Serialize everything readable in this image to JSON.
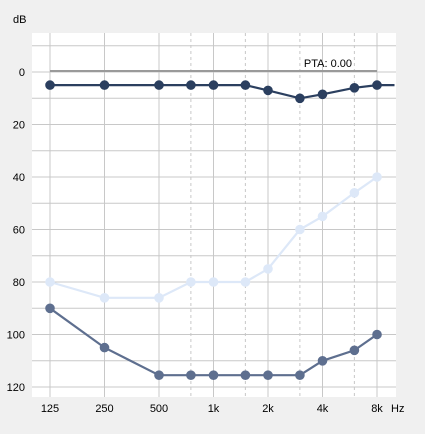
{
  "chart_data": {
    "type": "line",
    "y_unit_label": "dB",
    "x_unit_label": "Hz",
    "pta_label": "PTA: 0.00",
    "x_tick_labels": [
      "125",
      "250",
      "500",
      "1k",
      "2k",
      "4k",
      "8k"
    ],
    "y_tick_labels": [
      "0",
      "20",
      "40",
      "60",
      "80",
      "100",
      "120"
    ],
    "ylim": [
      -15,
      125
    ],
    "y_ticks": [
      0,
      20,
      40,
      60,
      80,
      100,
      120
    ],
    "y_minor_step": 10,
    "x_major_freqs": [
      125,
      250,
      500,
      1000,
      2000,
      4000,
      8000
    ],
    "x_dashed_freqs": [
      750,
      1500,
      3000,
      6000
    ],
    "xlim": [
      100,
      10000
    ],
    "x_scale": "log",
    "grid": true,
    "pta_line_value": 0,
    "colors": {
      "background": "#f0f0f0",
      "plot_background": "#ffffff",
      "grid": "#c8c8c8",
      "pta_line": "#9a9a9a"
    },
    "series": [
      {
        "color": "#2b3f5f",
        "points": [
          [
            125,
            5
          ],
          [
            250,
            5
          ],
          [
            500,
            5
          ],
          [
            750,
            5
          ],
          [
            1000,
            5
          ],
          [
            1500,
            5
          ],
          [
            2000,
            7
          ],
          [
            3000,
            10
          ],
          [
            4000,
            8.5
          ],
          [
            6000,
            6
          ],
          [
            8000,
            5
          ],
          [
            10000,
            5
          ]
        ]
      },
      {
        "color": "#dde8f8",
        "points": [
          [
            125,
            80
          ],
          [
            250,
            86
          ],
          [
            500,
            86
          ],
          [
            750,
            80
          ],
          [
            1000,
            80
          ],
          [
            1500,
            80
          ],
          [
            2000,
            75
          ],
          [
            3000,
            60
          ],
          [
            4000,
            55
          ],
          [
            6000,
            46
          ],
          [
            8000,
            40
          ]
        ]
      },
      {
        "color": "#5e6f8f",
        "points": [
          [
            125,
            90
          ],
          [
            250,
            105
          ],
          [
            500,
            115.5
          ],
          [
            750,
            115.5
          ],
          [
            1000,
            115.5
          ],
          [
            1500,
            115.5
          ],
          [
            2000,
            115.5
          ],
          [
            3000,
            115.5
          ],
          [
            4000,
            110
          ],
          [
            6000,
            106
          ],
          [
            8000,
            100
          ]
        ]
      }
    ]
  }
}
